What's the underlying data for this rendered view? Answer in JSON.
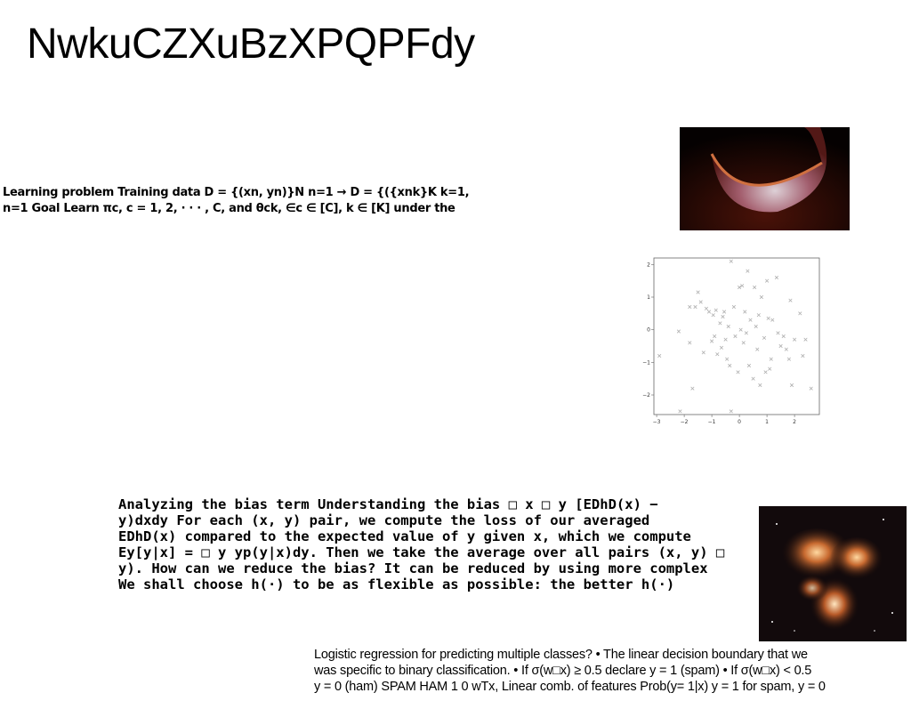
{
  "slide": {
    "title": "NwkuCZXuBzXPQPFdy",
    "block1_lines": [
      "Learning problem Training data D = {(xn, yn)}N n=1 → D = {({xnk}K k=1,",
      "n=1 Goal Learn πc, c = 1, 2, · · · , C, and θck, ∈c ∈ [C], k ∈ [K] under the"
    ],
    "block2_lines": [
      "Analyzing the bias term Understanding the bias □ x □ y [EDhD(x) −",
      "y)dxdy For each (x, y) pair, we compute the loss of our averaged",
      "EDhD(x) compared to the expected value of y given x, which we compute",
      "Ey[y|x] = □ y yp(y|x)dy. Then we take the average over all pairs (x, y) □",
      "y). How can we reduce the bias? It can be reduced by using more complex",
      "We shall choose h(·) to be as flexible as possible: the better h(·)"
    ],
    "block3_lines": [
      "Logistic regression for predicting multiple classes? • The linear decision boundary that we",
      "was specific to binary classification. • If σ(w□x) ≥ 0.5 declare y = 1 (spam) • If σ(w□x) < 0.5",
      "y = 0 (ham) SPAM HAM 1 0 wTx, Linear comb. of features Prob(y= 1|x) y = 1 for spam, y = 0"
    ]
  },
  "images": {
    "planet": "planet-photo",
    "nebula": "nebula-photo"
  },
  "chart_data": {
    "type": "scatter",
    "marker": "x",
    "color": "#b0b0b0",
    "title": "",
    "xlabel": "",
    "ylabel": "",
    "xlim": [
      -3.1,
      2.9
    ],
    "ylim": [
      -2.6,
      2.2
    ],
    "xticks": [
      "−3",
      "−2",
      "−1",
      "0",
      "1",
      "2"
    ],
    "xtick_values": [
      -3,
      -2,
      -1,
      0,
      1,
      2
    ],
    "yticks": [
      "2",
      "1",
      "0",
      "−1",
      "−2"
    ],
    "ytick_values": [
      2,
      1,
      0,
      -1,
      -2
    ],
    "points": [
      [
        -2.9,
        -0.8
      ],
      [
        -2.2,
        -0.05
      ],
      [
        -2.15,
        -2.5
      ],
      [
        -1.8,
        0.7
      ],
      [
        -1.8,
        -0.4
      ],
      [
        -1.7,
        -1.8
      ],
      [
        -1.6,
        0.7
      ],
      [
        -1.5,
        1.15
      ],
      [
        -1.4,
        0.85
      ],
      [
        -1.3,
        -0.7
      ],
      [
        -1.2,
        0.65
      ],
      [
        -1.1,
        0.55
      ],
      [
        -1.0,
        -0.35
      ],
      [
        -0.95,
        0.45
      ],
      [
        -0.9,
        -0.2
      ],
      [
        -0.85,
        0.6
      ],
      [
        -0.8,
        -0.75
      ],
      [
        -0.7,
        0.2
      ],
      [
        -0.65,
        -0.55
      ],
      [
        -0.6,
        0.4
      ],
      [
        -0.55,
        0.55
      ],
      [
        -0.5,
        -0.3
      ],
      [
        -0.45,
        -0.9
      ],
      [
        -0.4,
        0.1
      ],
      [
        -0.35,
        -1.1
      ],
      [
        -0.3,
        2.1
      ],
      [
        -0.3,
        -2.5
      ],
      [
        -0.2,
        0.7
      ],
      [
        -0.15,
        -0.2
      ],
      [
        -0.05,
        -1.3
      ],
      [
        0.0,
        1.3
      ],
      [
        0.05,
        0.0
      ],
      [
        0.1,
        1.35
      ],
      [
        0.15,
        -0.4
      ],
      [
        0.2,
        0.55
      ],
      [
        0.25,
        -0.1
      ],
      [
        0.3,
        1.8
      ],
      [
        0.35,
        -1.1
      ],
      [
        0.4,
        0.3
      ],
      [
        0.5,
        -1.5
      ],
      [
        0.55,
        1.3
      ],
      [
        0.6,
        0.1
      ],
      [
        0.65,
        -0.6
      ],
      [
        0.7,
        0.45
      ],
      [
        0.75,
        -1.7
      ],
      [
        0.8,
        1.0
      ],
      [
        0.9,
        -0.25
      ],
      [
        0.95,
        -1.3
      ],
      [
        1.0,
        1.5
      ],
      [
        1.05,
        0.35
      ],
      [
        1.1,
        -1.2
      ],
      [
        1.15,
        -0.9
      ],
      [
        1.2,
        0.3
      ],
      [
        1.35,
        1.6
      ],
      [
        1.4,
        -0.1
      ],
      [
        1.5,
        -0.5
      ],
      [
        1.6,
        -0.2
      ],
      [
        1.7,
        -0.6
      ],
      [
        1.8,
        -0.9
      ],
      [
        1.85,
        0.9
      ],
      [
        1.9,
        -1.7
      ],
      [
        2.0,
        -0.3
      ],
      [
        2.2,
        0.5
      ],
      [
        2.3,
        -0.8
      ],
      [
        2.4,
        -0.3
      ],
      [
        2.6,
        -1.8
      ]
    ]
  }
}
